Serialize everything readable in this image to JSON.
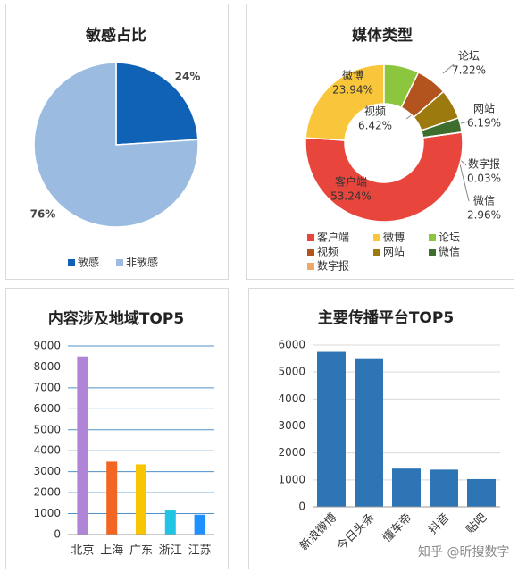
{
  "watermark": "知乎 @昕搜数字",
  "chart_data": [
    {
      "type": "pie",
      "title": "敏感占比",
      "categories": [
        "敏感",
        "非敏感"
      ],
      "values": [
        24,
        76
      ],
      "value_labels": [
        "24%",
        "76%"
      ],
      "colors": [
        "#0f62b6",
        "#9bbbe1"
      ],
      "legend": "bottom"
    },
    {
      "type": "donut",
      "title": "媒体类型",
      "categories": [
        "客户端",
        "微博",
        "论坛",
        "视频",
        "网站",
        "微信",
        "数字报"
      ],
      "values": [
        53.24,
        23.94,
        7.22,
        6.42,
        6.19,
        2.96,
        0.03
      ],
      "value_labels": [
        "53.24%",
        "23.94%",
        "7.22%",
        "6.42%",
        "6.19%",
        "2.96%",
        "0.03%"
      ],
      "colors": [
        "#e8453c",
        "#f9c53a",
        "#8cc63e",
        "#b3541e",
        "#9c7a0e",
        "#3e6e2e",
        "#f0a868"
      ],
      "legend": "bottom"
    },
    {
      "type": "bar",
      "title": "内容涉及地域TOP5",
      "categories": [
        "北京",
        "上海",
        "广东",
        "浙江",
        "江苏"
      ],
      "values": [
        8500,
        3480,
        3350,
        1150,
        950
      ],
      "colors": [
        "#b084d6",
        "#f26522",
        "#f7c600",
        "#22c4e6",
        "#1e90ff"
      ],
      "ylim": [
        0,
        9000
      ],
      "yticks": [
        0,
        1000,
        2000,
        3000,
        4000,
        5000,
        6000,
        7000,
        8000,
        9000
      ],
      "grid": true
    },
    {
      "type": "bar",
      "title": "主要传播平台TOP5",
      "categories": [
        "新浪微博",
        "今日头条",
        "懂车帝",
        "抖音",
        "贴吧"
      ],
      "values": [
        5750,
        5480,
        1420,
        1380,
        1030
      ],
      "colors": [
        "#2e75b6",
        "#2e75b6",
        "#2e75b6",
        "#2e75b6",
        "#2e75b6"
      ],
      "ylim": [
        0,
        6000
      ],
      "yticks": [
        0,
        1000,
        2000,
        3000,
        4000,
        5000,
        6000
      ],
      "grid": true
    }
  ]
}
